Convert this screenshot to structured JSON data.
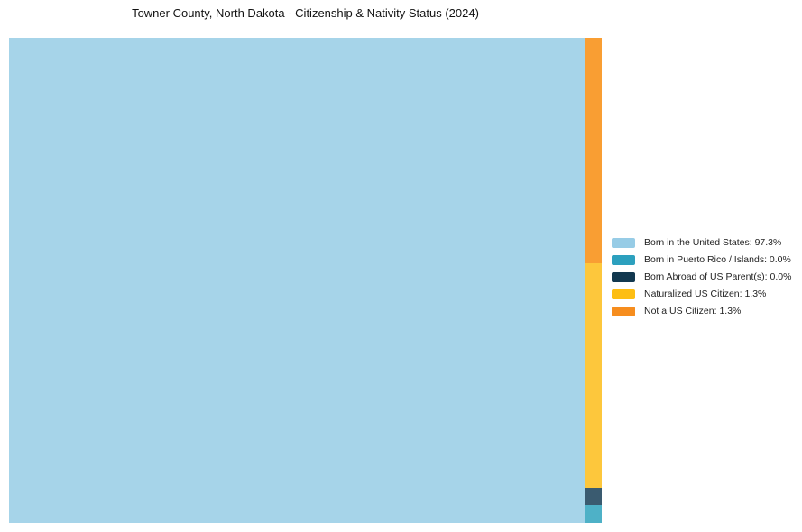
{
  "header": {
    "title": "Towner County, North Dakota - Citizenship & Nativity Status (2024)"
  },
  "chart_data": {
    "type": "treemap",
    "title": "Towner County, North Dakota - Citizenship & Nativity Status (2024)",
    "unit": "percent",
    "legend_position": "right-center",
    "categories": [
      "Born in the United States",
      "Born in Puerto Rico / Islands",
      "Born Abroad of US Parent(s)",
      "Naturalized US Citizen",
      "Not a US Citizen"
    ],
    "values": [
      97.3,
      0.0,
      0.0,
      1.3,
      1.3
    ],
    "legend_entries": [
      "Born in the United States: 97.3%",
      "Born in Puerto Rico / Islands: 0.0%",
      "Born Abroad of US Parent(s): 0.0%",
      "Naturalized US Citizen: 1.3%",
      "Not a US Citizen: 1.3%"
    ],
    "legend_colors": [
      "#97CCE6",
      "#2CA0BE",
      "#12384F",
      "#FDBE13",
      "#F68D1E"
    ],
    "tiles": {
      "main": {
        "category_index": 0,
        "color": "#A6D4E9",
        "width_pct": 97.26
      },
      "strip": {
        "width_pct": 2.74,
        "items_top_to_bottom": [
          {
            "category_index": 4,
            "label": "Not a US Citizen",
            "color": "#F99E33",
            "height_pct": 46.47
          },
          {
            "category_index": 3,
            "label": "Naturalized US Citizen",
            "color": "#FDC73C",
            "height_pct": 46.28
          },
          {
            "category_index": 2,
            "label": "Born Abroad of US Parent(s)",
            "color": "#3A5B70",
            "height_pct": 3.53
          },
          {
            "category_index": 1,
            "label": "Born in Puerto Rico / Islands",
            "color": "#4EB1C7",
            "height_pct": 3.72
          }
        ]
      }
    }
  }
}
